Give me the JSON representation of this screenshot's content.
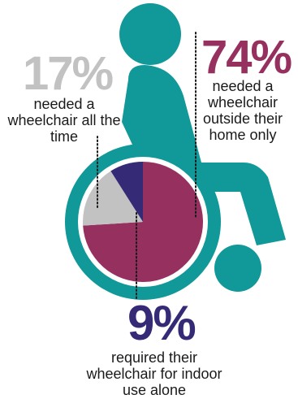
{
  "colors": {
    "wheelchair": "#119898",
    "outside_home": "#96305f",
    "all_the_time": "#c2c2c2",
    "indoor": "#342a75",
    "hub": "#ffffff"
  },
  "icons": [
    "wheelchair-user-icon"
  ],
  "chart_data": {
    "type": "pie",
    "title": "",
    "slices": [
      {
        "label": "needed a wheelchair outside their home only",
        "value": 74,
        "display": "74%"
      },
      {
        "label": "needed a wheelchair all the time",
        "value": 17,
        "display": "17%"
      },
      {
        "label": "required their wheelchair for indoor use alone",
        "value": 9,
        "display": "9%"
      }
    ],
    "start": "12 o'clock",
    "direction": "clockwise"
  }
}
